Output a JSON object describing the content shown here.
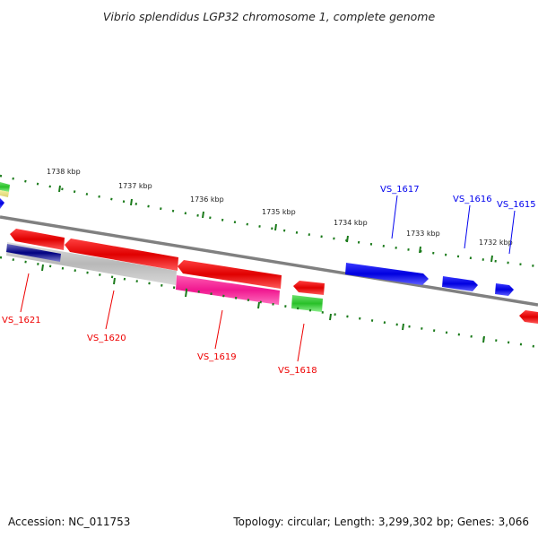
{
  "title": "Vibrio splendidus LGP32 chromosome 1, complete genome",
  "footer": {
    "accession": "Accession: NC_011753",
    "summary": "Topology: circular; Length: 3,299,302 bp; Genes: 3,066"
  },
  "scale_labels": [
    "1738 kbp",
    "1737 kbp",
    "1736 kbp",
    "1735 kbp",
    "1734 kbp",
    "1733 kbp",
    "1732 kbp"
  ],
  "gene_labels": {
    "top": [
      "VS_1617",
      "VS_1616",
      "VS_1615"
    ],
    "bottom": [
      "VS_1621",
      "VS_1620",
      "VS_1619",
      "VS_1618"
    ]
  },
  "colors": {
    "forward_gene": "#0000ee",
    "reverse_gene": "#ee0000",
    "backbone": "#808080",
    "tick": "#1a7a1a",
    "feature_green": "#33cc33",
    "feature_pink": "#ff1493",
    "feature_gray": "#bdbdbd",
    "feature_navy": "#000080"
  }
}
